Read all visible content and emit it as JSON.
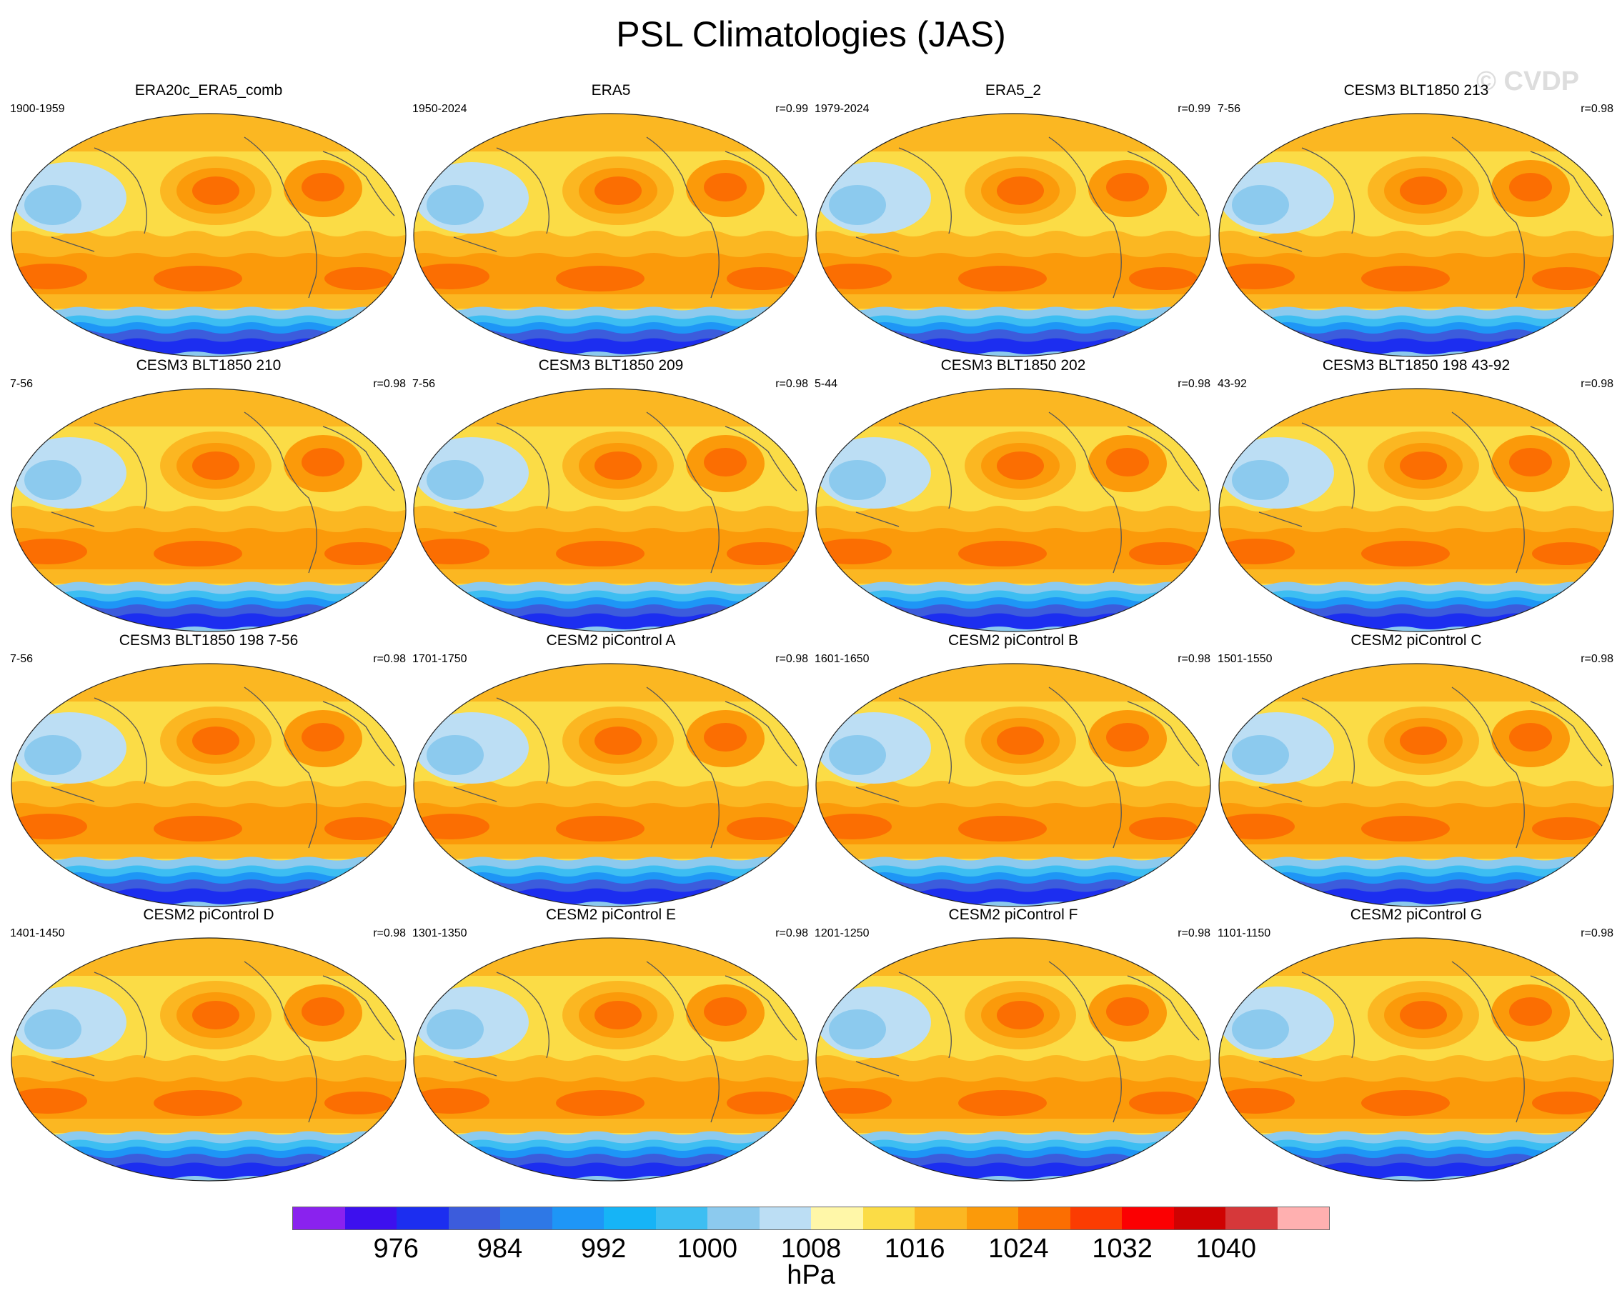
{
  "title": "PSL Climatologies (JAS)",
  "watermark": "© CVDP",
  "chart_data": {
    "type": "heatmap",
    "title": "PSL Climatologies (JAS)",
    "variable": "PSL",
    "units": "hPa",
    "colorbar": {
      "levels": [
        972,
        976,
        980,
        984,
        988,
        992,
        996,
        1000,
        1004,
        1008,
        1012,
        1016,
        1020,
        1024,
        1028,
        1032,
        1036,
        1040,
        1044
      ],
      "tick_labels": [
        "976",
        "984",
        "992",
        "1000",
        "1008",
        "1016",
        "1024",
        "1032",
        "1040"
      ],
      "tick_values": [
        976,
        984,
        992,
        1000,
        1008,
        1016,
        1024,
        1032,
        1040
      ],
      "colors": [
        "#8a22ee",
        "#3d10ee",
        "#1c2ef0",
        "#3c5cdc",
        "#2e78e6",
        "#1e96f6",
        "#16b4f6",
        "#3dbef2",
        "#8ccaee",
        "#bcdef4",
        "#fff7a8",
        "#fbdc46",
        "#fbb722",
        "#fb9a0a",
        "#fb6e02",
        "#fb3c02",
        "#fb0002",
        "#cf0202",
        "#d6383a",
        "#ffb0b0"
      ]
    },
    "panels": [
      {
        "name": "ERA20c_ERA5_comb",
        "years": "1900-1959",
        "r": ""
      },
      {
        "name": "ERA5",
        "years": "1950-2024",
        "r": "r=0.99"
      },
      {
        "name": "ERA5_2",
        "years": "1979-2024",
        "r": "r=0.99"
      },
      {
        "name": "CESM3 BLT1850 213",
        "years": "7-56",
        "r": "r=0.98"
      },
      {
        "name": "CESM3 BLT1850 210",
        "years": "7-56",
        "r": "r=0.98"
      },
      {
        "name": "CESM3 BLT1850 209",
        "years": "7-56",
        "r": "r=0.98"
      },
      {
        "name": "CESM3 BLT1850 202",
        "years": "5-44",
        "r": "r=0.98"
      },
      {
        "name": "CESM3 BLT1850 198 43-92",
        "years": "43-92",
        "r": "r=0.98"
      },
      {
        "name": "CESM3 BLT1850 198 7-56",
        "years": "7-56",
        "r": "r=0.98"
      },
      {
        "name": "CESM2 piControl A",
        "years": "1701-1750",
        "r": "r=0.98"
      },
      {
        "name": "CESM2 piControl B",
        "years": "1601-1650",
        "r": "r=0.98"
      },
      {
        "name": "CESM2 piControl C",
        "years": "1501-1550",
        "r": "r=0.98"
      },
      {
        "name": "CESM2 piControl D",
        "years": "1401-1450",
        "r": "r=0.98"
      },
      {
        "name": "CESM2 piControl E",
        "years": "1301-1350",
        "r": "r=0.98"
      },
      {
        "name": "CESM2 piControl F",
        "years": "1201-1250",
        "r": "r=0.98"
      },
      {
        "name": "CESM2 piControl G",
        "years": "1101-1150",
        "r": "r=0.98"
      }
    ]
  }
}
